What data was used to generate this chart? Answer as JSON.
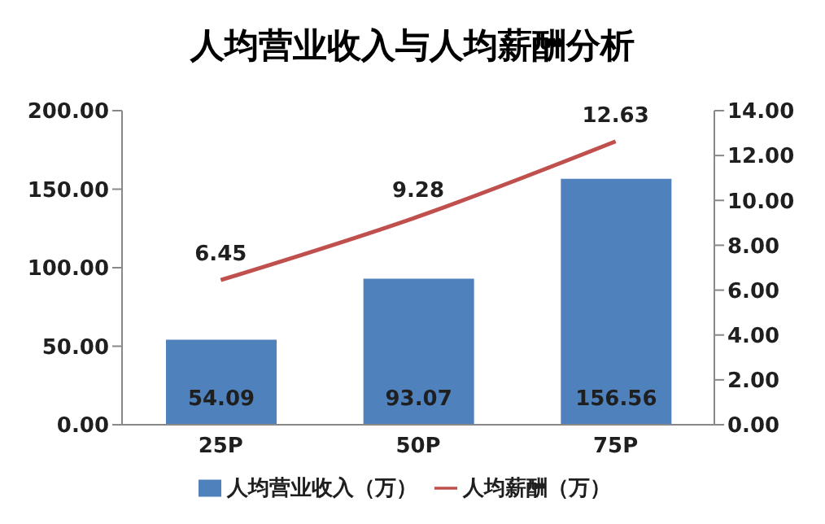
{
  "chart_data": {
    "type": "bar",
    "title": "人均营业收入与人均薪酬分析",
    "categories": [
      "25P",
      "50P",
      "75P"
    ],
    "series": [
      {
        "name": "人均营业收入（万）",
        "color": "#4f81bd",
        "values": [
          54.09,
          93.07,
          156.56
        ]
      },
      {
        "name": "人均薪酬（万）",
        "type": "line",
        "axis": "y2",
        "color": "#c0504d",
        "values": [
          6.45,
          9.28,
          12.63
        ]
      }
    ],
    "ylim": [
      0,
      200
    ],
    "yticks": [
      {
        "value": 0,
        "label": "0.00"
      },
      {
        "value": 50,
        "label": "50.00"
      },
      {
        "value": 100,
        "label": "100.00"
      },
      {
        "value": 150,
        "label": "150.00"
      },
      {
        "value": 200,
        "label": "200.00"
      }
    ],
    "y2lim": [
      0,
      14
    ],
    "y2ticks": [
      {
        "value": 0,
        "label": "0.00"
      },
      {
        "value": 2,
        "label": "2.00"
      },
      {
        "value": 4,
        "label": "4.00"
      },
      {
        "value": 6,
        "label": "6.00"
      },
      {
        "value": 8,
        "label": "8.00"
      },
      {
        "value": 10,
        "label": "10.00"
      },
      {
        "value": 12,
        "label": "12.00"
      },
      {
        "value": 14,
        "label": "14.00"
      }
    ],
    "data_labels": true,
    "legend": "bottom",
    "grid": false,
    "marker": "none"
  }
}
